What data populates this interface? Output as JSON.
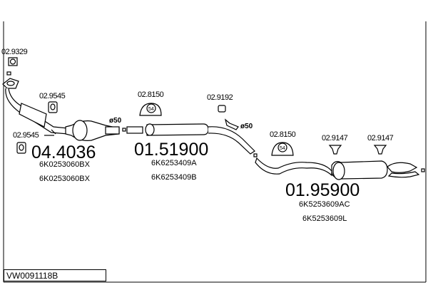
{
  "diagram_code": "VW0091118B",
  "parts": [
    {
      "number": "02.9329"
    },
    {
      "number": "02.9545"
    },
    {
      "number": "02.9545"
    },
    {
      "number": "02.8150"
    },
    {
      "number": "02.9192"
    },
    {
      "number": "02.8150"
    },
    {
      "number": "02.9147"
    },
    {
      "number": "02.9147"
    }
  ],
  "assemblies": [
    {
      "number": "04.4036",
      "oe": [
        "6K0253060BX",
        "6K0253060BX"
      ]
    },
    {
      "number": "01.51900",
      "oe": [
        "6K6253409A",
        "6K6253409B"
      ]
    },
    {
      "number": "01.95900",
      "oe": [
        "6K5253609AC",
        "6K5253609L"
      ]
    }
  ],
  "diameters": [
    "ø50",
    "ø50"
  ],
  "clamp_size": [
    "54",
    "54"
  ]
}
